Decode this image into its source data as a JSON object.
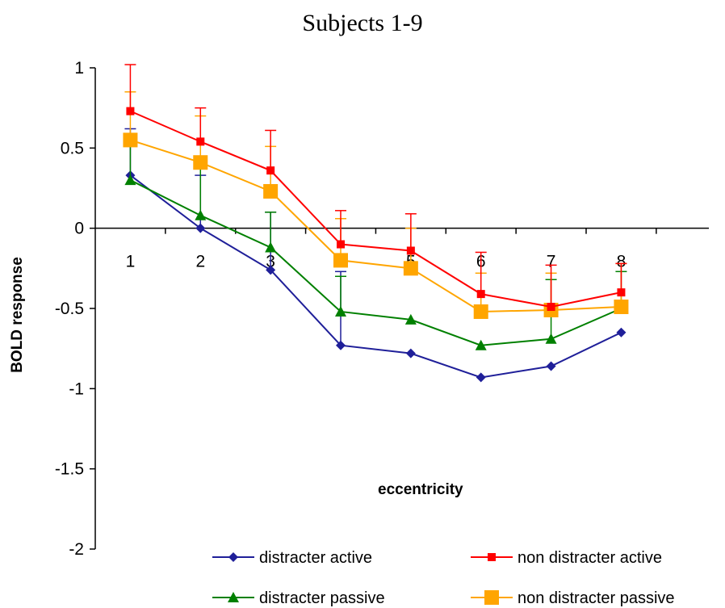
{
  "chart_data": {
    "type": "line",
    "title": "Subjects 1-9",
    "xlabel": "eccentricity",
    "ylabel": "BOLD response",
    "categories": [
      "1",
      "2",
      "3",
      "4",
      "5",
      "6",
      "7",
      "8"
    ],
    "yticks": [
      "1",
      "0.5",
      "0",
      "-0.5",
      "-1",
      "-1.5",
      "-2"
    ],
    "ylim": [
      -2,
      1
    ],
    "series": [
      {
        "name": "distracter active",
        "color": "#1f1f99",
        "marker": "diamond",
        "values": [
          0.33,
          0.0,
          -0.26,
          -0.73,
          -0.78,
          -0.93,
          -0.86,
          -0.65
        ],
        "err_plus": [
          0.29,
          0.33,
          0.36,
          0.46,
          0.0,
          0.0,
          0.0,
          0.0
        ]
      },
      {
        "name": "non distracter active",
        "color": "#ff0000",
        "marker": "square",
        "values": [
          0.73,
          0.54,
          0.36,
          -0.1,
          -0.14,
          -0.41,
          -0.49,
          -0.4
        ],
        "err_plus": [
          0.29,
          0.21,
          0.25,
          0.21,
          0.23,
          0.26,
          0.26,
          0.18
        ]
      },
      {
        "name": "distracter passive",
        "color": "#008000",
        "marker": "triangle",
        "values": [
          0.3,
          0.08,
          -0.12,
          -0.52,
          -0.57,
          -0.73,
          -0.69,
          -0.5
        ],
        "err_plus": [
          0.24,
          0.31,
          0.22,
          0.22,
          0.0,
          0.0,
          0.37,
          0.23
        ]
      },
      {
        "name": "non distracter passive",
        "color": "#ffa500",
        "marker": "big-square",
        "values": [
          0.55,
          0.41,
          0.23,
          -0.2,
          -0.25,
          -0.52,
          -0.51,
          -0.49
        ],
        "err_plus": [
          0.3,
          0.29,
          0.28,
          0.26,
          0.25,
          0.24,
          0.23,
          0.27
        ]
      }
    ],
    "legend_position": "bottom",
    "grid": false
  }
}
